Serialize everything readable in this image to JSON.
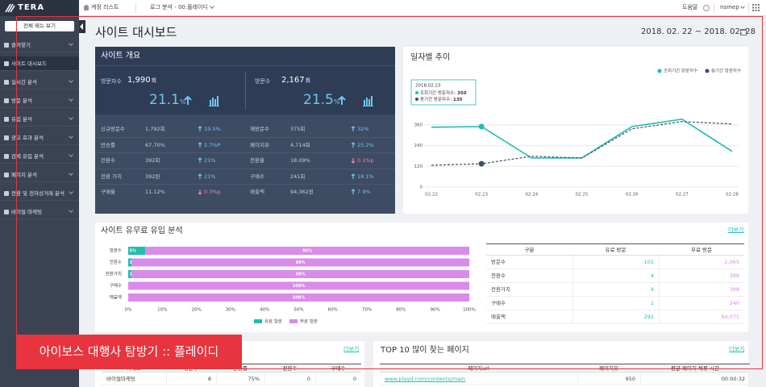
{
  "header": {
    "logo": "TERA",
    "account_list": "계정 리스트",
    "log_analysis": "로그 분석 - 00.플레이디",
    "help": "도움말",
    "user": "nsmep"
  },
  "sidebar": {
    "all_menu": "전체 메뉴 보기",
    "active": 1,
    "items": [
      "즐겨찾기",
      "사이트 대시보드",
      "실시간 분석",
      "방문 분석",
      "유입 분석",
      "광고 효과 분석",
      "검색 유입 분석",
      "페이지 분석",
      "전환 및 전자상거래 분석",
      "바이럴 마케팅"
    ]
  },
  "page": {
    "title": "사이트 대시보드",
    "date_range": "2018. 02. 22 ~ 2018. 02. 28"
  },
  "overview": {
    "title": "사이트 개요",
    "kpis": [
      {
        "label": "방문자수",
        "value": "1,990",
        "unit": "회",
        "change": "21.1",
        "change_unit": "%"
      },
      {
        "label": "방문수",
        "value": "2,167",
        "unit": "회",
        "change": "21.5",
        "change_unit": "%"
      }
    ],
    "rows": [
      [
        {
          "label": "신규방문수",
          "value": "1,792회",
          "change": "19.5%",
          "dir": "up"
        },
        {
          "label": "재방문수",
          "value": "375회",
          "change": "32%",
          "dir": "up"
        }
      ],
      [
        {
          "label": "반송률",
          "value": "67.70%",
          "change": "2.7%P",
          "dir": "up"
        },
        {
          "label": "페이지뷰",
          "value": "4,714회",
          "change": "25.2%",
          "dir": "up"
        }
      ],
      [
        {
          "label": "전환수",
          "value": "392회",
          "change": "21%",
          "dir": "up"
        },
        {
          "label": "전환율",
          "value": "18.09%",
          "change": "0.1%p",
          "dir": "down"
        }
      ],
      [
        {
          "label": "전환 가치",
          "value": "392원",
          "change": "21%",
          "dir": "up"
        },
        {
          "label": "구매수",
          "value": "241회",
          "change": "18.1%",
          "dir": "up"
        }
      ],
      [
        {
          "label": "구매율",
          "value": "11.12%",
          "change": "0.3%p",
          "dir": "down"
        },
        {
          "label": "매출액",
          "value": "94,362원",
          "change": "7.9%",
          "dir": "up"
        }
      ]
    ]
  },
  "trend_chart": {
    "type": "line",
    "title": "일자별 추이",
    "categories": [
      "02.22",
      "02.23",
      "02.24",
      "02.25",
      "02.26",
      "02.27",
      "02.28"
    ],
    "series": [
      {
        "name": "조회기간 방문자수",
        "color": "#1fbcb0",
        "dashed": false,
        "values": [
          346,
          350,
          168,
          168,
          350,
          393,
          206
        ]
      },
      {
        "name": "동기간 방문자수",
        "color": "#3b4d72",
        "dashed": true,
        "values": [
          126,
          135,
          178,
          168,
          337,
          379,
          365
        ]
      }
    ],
    "ylim": [
      0,
      420
    ],
    "yticks": [
      0,
      120,
      240,
      360
    ],
    "grid": true,
    "tooltip": {
      "index": 1,
      "title": "2018.02.23",
      "items": [
        {
          "label": "조회기간 방문자수:",
          "value": "350"
        },
        {
          "label": "동기간 방문자수:",
          "value": "135"
        }
      ]
    }
  },
  "inflow": {
    "type": "bar",
    "orientation": "horizontal",
    "stacked": true,
    "title": "사이트 유무료 유입 분석",
    "more": "더보기",
    "categories": [
      "방문수",
      "전환수",
      "전환가치",
      "구매수",
      "매출액"
    ],
    "series": [
      {
        "name": "유료 방문",
        "color": "#1fbcb0",
        "values": [
          5,
          1,
          1,
          0,
          0
        ],
        "value_labels": [
          "5%",
          "1%",
          "1%",
          null,
          null
        ]
      },
      {
        "name": "무료 방문",
        "color": "#d98be9",
        "values": [
          95,
          99,
          99,
          100,
          100
        ],
        "value_labels": [
          "95%",
          "99%",
          "99%",
          "100%",
          "100%"
        ]
      }
    ],
    "xlim": [
      0,
      100
    ],
    "xticks": [
      {
        "value": 0,
        "label": "0%"
      },
      {
        "value": 10,
        "label": "10%"
      },
      {
        "value": 20,
        "label": "20%"
      },
      {
        "value": 30,
        "label": "30%"
      },
      {
        "value": 40,
        "label": "40%"
      },
      {
        "value": 50,
        "label": "50%"
      },
      {
        "value": 60,
        "label": "60%"
      },
      {
        "value": 70,
        "label": "70%"
      },
      {
        "value": 80,
        "label": "80%"
      },
      {
        "value": 90,
        "label": "90%"
      },
      {
        "value": 100,
        "label": "100%"
      }
    ],
    "table": {
      "columns": [
        "구분",
        "유료 방문",
        "무료 방문"
      ],
      "rows": [
        [
          "방문수",
          "101",
          "2,065"
        ],
        [
          "전환수",
          "4",
          "388"
        ],
        [
          "전환가치",
          "4",
          "388"
        ],
        [
          "구매수",
          "1",
          "240"
        ],
        [
          "매출액",
          "291",
          "94,071"
        ]
      ]
    }
  },
  "keywords": {
    "more": "더보기",
    "columns": [
      "키워드",
      "방문수",
      "반송률",
      "전환수",
      "구매수"
    ],
    "rows": [
      [
        "바이럴마케팅",
        "8",
        "75%",
        "0",
        "0"
      ]
    ]
  },
  "top_pages": {
    "title": "TOP 10 많이 찾는 페이지",
    "more": "더보기",
    "columns": [
      "페이지url",
      "페이지뷰",
      "평균 페이지 체류 시간"
    ],
    "rows": [
      [
        "www.playd.com/contents/main",
        "950",
        "00:00:32"
      ]
    ]
  },
  "banner": "아이보스 대행사 탐방기 :: 플레이디"
}
